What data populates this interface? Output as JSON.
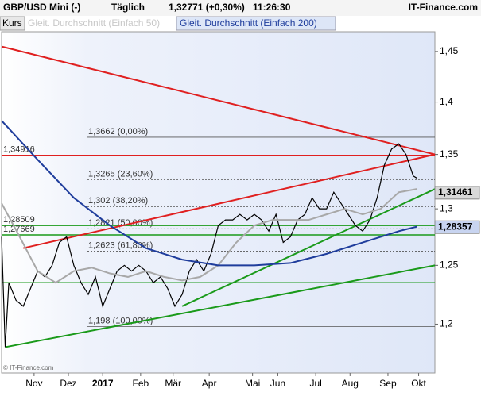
{
  "chart_data": {
    "type": "line",
    "header": {
      "symbol": "GBP/USD Mini (-)",
      "period": "Täglich",
      "quote": "1,32771 (+0,30%)",
      "time": "11:26:30",
      "brand": "IT-Finance.com"
    },
    "copyright": "© IT-Finance.com",
    "log_scale": true,
    "xlim": [
      0,
      240
    ],
    "ylim": [
      1.16,
      1.47
    ],
    "xticks": [
      {
        "value": 18,
        "label": "Nov"
      },
      {
        "value": 37,
        "label": "Dez"
      },
      {
        "value": 56,
        "label": "2017"
      },
      {
        "value": 77,
        "label": "Feb"
      },
      {
        "value": 95,
        "label": "Mär"
      },
      {
        "value": 115,
        "label": "Apr"
      },
      {
        "value": 139,
        "label": "Mai"
      },
      {
        "value": 153,
        "label": "Jun"
      },
      {
        "value": 174,
        "label": "Jul"
      },
      {
        "value": 193,
        "label": "Aug"
      },
      {
        "value": 214,
        "label": "Sep"
      },
      {
        "value": 231,
        "label": "Okt"
      }
    ],
    "yticks": [
      {
        "value": 1.2,
        "label": "1,2"
      },
      {
        "value": 1.25,
        "label": "1,25"
      },
      {
        "value": 1.3,
        "label": "1,3"
      },
      {
        "value": 1.35,
        "label": "1,35"
      },
      {
        "value": 1.4,
        "label": "1,4"
      },
      {
        "value": 1.45,
        "label": "1,45"
      }
    ],
    "legend_label": "Kurs",
    "series": [
      {
        "name": "Kurs",
        "color": "#000000",
        "x": [
          0,
          2,
          4,
          8,
          12,
          16,
          20,
          24,
          28,
          32,
          36,
          40,
          44,
          48,
          52,
          56,
          60,
          64,
          68,
          72,
          76,
          80,
          84,
          88,
          92,
          96,
          100,
          104,
          108,
          112,
          116,
          120,
          124,
          128,
          132,
          136,
          140,
          144,
          148,
          152,
          156,
          160,
          164,
          168,
          172,
          176,
          180,
          184,
          188,
          192,
          196,
          200,
          204,
          208,
          212,
          216,
          220,
          224,
          228,
          230
        ],
        "values": [
          1.275,
          1.181,
          1.235,
          1.22,
          1.215,
          1.23,
          1.245,
          1.24,
          1.25,
          1.27,
          1.275,
          1.25,
          1.235,
          1.225,
          1.24,
          1.215,
          1.23,
          1.245,
          1.25,
          1.245,
          1.25,
          1.245,
          1.235,
          1.24,
          1.23,
          1.215,
          1.225,
          1.245,
          1.255,
          1.245,
          1.26,
          1.285,
          1.29,
          1.29,
          1.295,
          1.29,
          1.295,
          1.29,
          1.28,
          1.295,
          1.27,
          1.275,
          1.29,
          1.295,
          1.31,
          1.3,
          1.3,
          1.315,
          1.305,
          1.295,
          1.285,
          1.28,
          1.29,
          1.31,
          1.34,
          1.355,
          1.36,
          1.35,
          1.33,
          1.328
        ]
      },
      {
        "name": "Gleit. Durchschnitt (Einfach 50)",
        "color": "#a8a8a8",
        "x": [
          0,
          10,
          20,
          30,
          40,
          50,
          60,
          70,
          80,
          90,
          100,
          110,
          120,
          130,
          140,
          150,
          160,
          170,
          180,
          190,
          200,
          210,
          220,
          230
        ],
        "values": [
          1.305,
          1.275,
          1.245,
          1.235,
          1.245,
          1.248,
          1.243,
          1.24,
          1.245,
          1.24,
          1.237,
          1.24,
          1.25,
          1.27,
          1.285,
          1.29,
          1.29,
          1.29,
          1.295,
          1.3,
          1.295,
          1.3,
          1.315,
          1.318
        ]
      },
      {
        "name": "Gleit. Durchschnitt (Einfach 200)",
        "color": "#1f3d9c",
        "x": [
          0,
          20,
          40,
          60,
          80,
          100,
          120,
          140,
          160,
          180,
          200,
          220,
          230
        ],
        "values": [
          1.382,
          1.345,
          1.31,
          1.285,
          1.265,
          1.255,
          1.25,
          1.25,
          1.252,
          1.26,
          1.27,
          1.28,
          1.284
        ]
      }
    ],
    "trend_lines": [
      {
        "x": [
          0,
          240
        ],
        "y": [
          1.455,
          1.35
        ],
        "color": "#e02020"
      },
      {
        "x": [
          12,
          240
        ],
        "y": [
          1.265,
          1.35
        ],
        "color": "#e02020"
      },
      {
        "x": [
          2,
          240
        ],
        "y": [
          1.181,
          1.25
        ],
        "color": "#1a9a1a"
      },
      {
        "x": [
          100,
          240
        ],
        "y": [
          1.215,
          1.318
        ],
        "color": "#1a9a1a"
      }
    ],
    "horizontal_levels": [
      {
        "value": 1.34916,
        "label": "1,34916",
        "color": "#e02020"
      },
      {
        "value": 1.28509,
        "label": "1,28509",
        "color": "#1a9a1a"
      },
      {
        "value": 1.27669,
        "label": "1,27669",
        "color": "#1a9a1a"
      },
      {
        "value": 1.235,
        "color": "#1a9a1a"
      }
    ],
    "fib_levels": [
      {
        "value": 1.3662,
        "label": "1,3662 (0,00%)"
      },
      {
        "value": 1.3265,
        "label": "1,3265 (23,60%)"
      },
      {
        "value": 1.302,
        "label": "1,302 (38,20%)"
      },
      {
        "value": 1.2821,
        "label": "1,2821 (50,00%)"
      },
      {
        "value": 1.2623,
        "label": "1,2623 (61,80%)"
      },
      {
        "value": 1.198,
        "label": "1,198 (100,00%)"
      }
    ],
    "price_tags": [
      {
        "value": 1.31461,
        "label": "1,31461",
        "color": "#d8d8d8"
      },
      {
        "value": 1.28357,
        "label": "1,28357",
        "color": "#c8d4f0"
      }
    ]
  }
}
